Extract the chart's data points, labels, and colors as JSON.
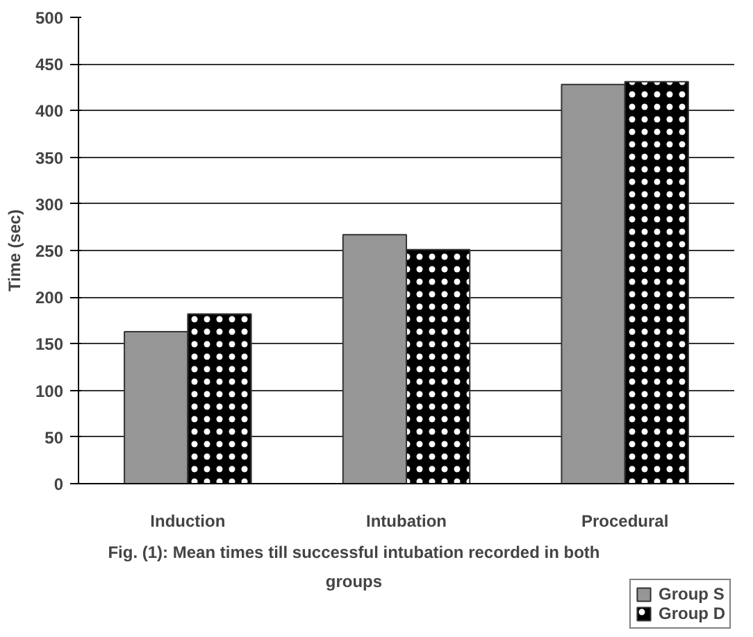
{
  "chart_data": {
    "type": "bar",
    "ylabel": "Time (sec)",
    "categories": [
      "Induction",
      "Intubation",
      "Procedural"
    ],
    "series": [
      {
        "name": "Group S",
        "color": "#969696",
        "values": [
          163,
          267,
          428
        ]
      },
      {
        "name": "Group D",
        "color": "#000000",
        "values": [
          182,
          251,
          431
        ]
      }
    ],
    "ylim": [
      0,
      500
    ],
    "yticks": [
      0,
      50,
      100,
      150,
      200,
      250,
      300,
      350,
      400,
      450,
      500
    ],
    "grid": "y",
    "legend": "bottom right",
    "annotations": [
      "Fig. (1): Mean times till successful intubation recorded in both groups"
    ]
  }
}
